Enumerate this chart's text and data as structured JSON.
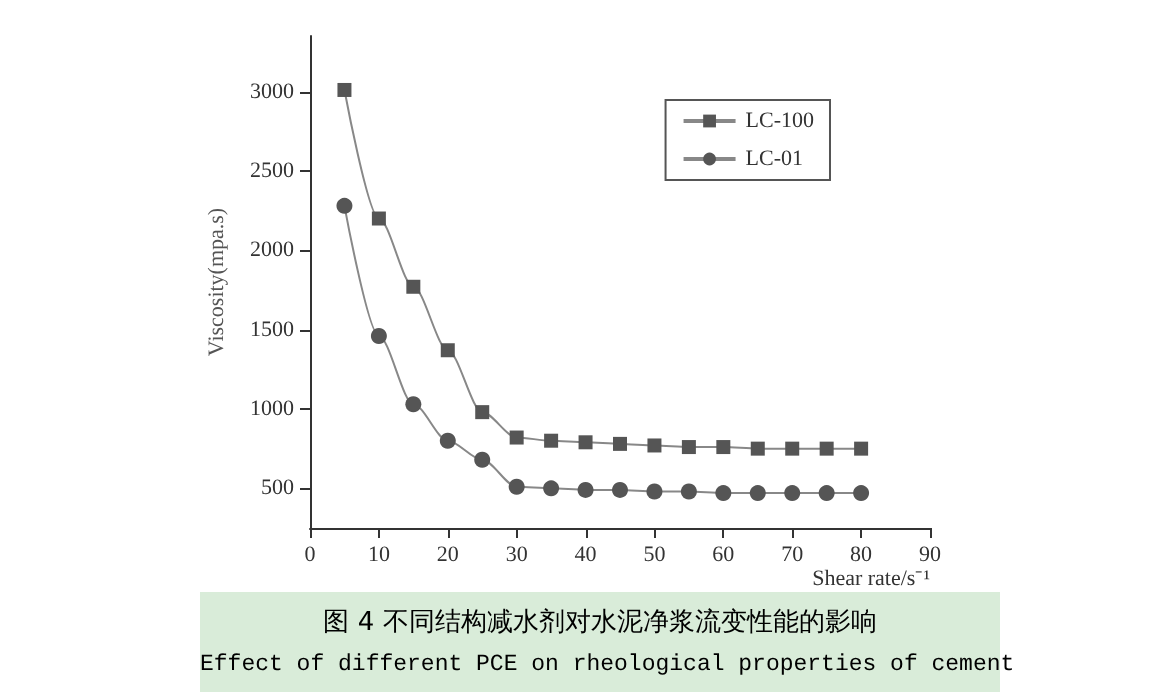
{
  "chart_data": {
    "type": "line",
    "xlabel": "Shear rate/s⁻¹",
    "ylabel": "Viscosity(mpa.s)",
    "x": [
      5,
      10,
      15,
      20,
      25,
      30,
      35,
      40,
      45,
      50,
      55,
      60,
      65,
      70,
      75,
      80
    ],
    "series": [
      {
        "name": "LC-100",
        "color": "#555555",
        "marker": "square",
        "values": [
          3010,
          2200,
          1770,
          1370,
          980,
          820,
          800,
          790,
          780,
          770,
          760,
          760,
          750,
          750,
          750,
          750
        ]
      },
      {
        "name": "LC-01",
        "color": "#555555",
        "marker": "circle",
        "values": [
          2280,
          1460,
          1030,
          800,
          680,
          510,
          500,
          490,
          490,
          480,
          480,
          470,
          470,
          470,
          470,
          470
        ]
      }
    ],
    "xlim": [
      0,
      90
    ],
    "xticks": [
      0,
      10,
      20,
      30,
      40,
      50,
      60,
      70,
      80,
      90
    ],
    "ylim": [
      250,
      3350
    ],
    "yticks": [
      500,
      1000,
      1500,
      2000,
      2500,
      3000
    ],
    "grid": false,
    "legend": "top right",
    "line_style": "solid",
    "annotations": [
      "图 4 不同结构减水剂对水泥净浆流变性能的影响",
      "Effect of different PCE on rheological properties of cement"
    ]
  }
}
